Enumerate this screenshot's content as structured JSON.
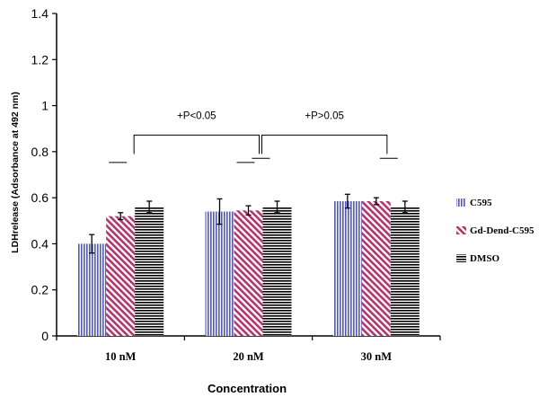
{
  "chart_data": {
    "type": "bar",
    "title": "",
    "xlabel": "Concentration",
    "ylabel": "LDHrelease (Adsorbance at 492 nm)",
    "ylim": [
      0,
      1.4
    ],
    "yticks": [
      "0",
      "0.2",
      "0.4",
      "0.6",
      "0.8",
      "1",
      "1.2",
      "1.4"
    ],
    "categories": [
      "10  nM",
      "20  nM",
      "30  nM"
    ],
    "series": [
      {
        "name": "C595",
        "values": [
          0.4,
          0.54,
          0.585
        ],
        "errors": [
          0.04,
          0.055,
          0.03
        ],
        "color": "#4e55d6",
        "pattern": "vertical-stripes"
      },
      {
        "name": "Gd-Dend-C595",
        "values": [
          0.52,
          0.545,
          0.585
        ],
        "errors": [
          0.015,
          0.02,
          0.015
        ],
        "color": "#b8336a",
        "pattern": "diagonal-stripes"
      },
      {
        "name": "DMSO",
        "values": [
          0.56,
          0.56,
          0.56
        ],
        "errors": [
          0.025,
          0.025,
          0.025
        ],
        "color": "#000000",
        "pattern": "horizontal-stripes"
      }
    ],
    "legend_position": "right",
    "grid": false,
    "annotations": [
      {
        "text": "+P<0.05",
        "between": [
          "10  nM",
          "20  nM"
        ],
        "level": 0.88
      },
      {
        "text": "+P>0.05",
        "between": [
          "20  nM",
          "30  nM"
        ],
        "level": 0.88
      }
    ]
  }
}
